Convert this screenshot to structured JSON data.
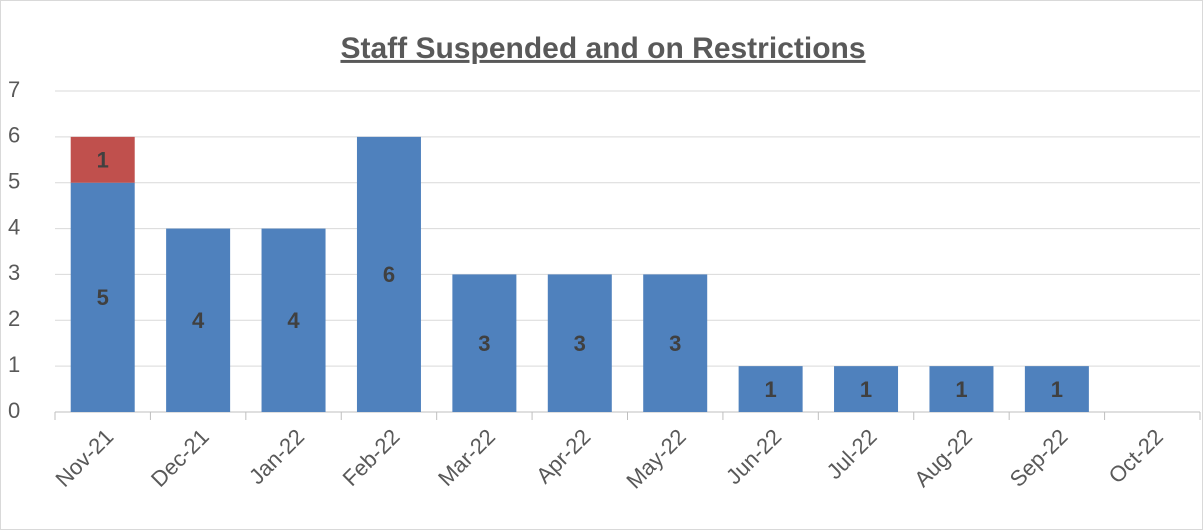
{
  "chart_data": {
    "type": "bar",
    "stacked": true,
    "title": "Staff Suspended and on Restrictions",
    "categories": [
      "Nov-21",
      "Dec-21",
      "Jan-22",
      "Feb-22",
      "Mar-22",
      "Apr-22",
      "May-22",
      "Jun-22",
      "Jul-22",
      "Aug-22",
      "Sep-22",
      "Oct-22"
    ],
    "series": [
      {
        "color": "#4f81bd",
        "values": [
          5,
          4,
          4,
          6,
          3,
          3,
          3,
          1,
          1,
          1,
          1,
          null
        ]
      },
      {
        "color": "#c0504d",
        "values": [
          1,
          null,
          null,
          null,
          null,
          null,
          null,
          null,
          null,
          null,
          null,
          null
        ]
      }
    ],
    "ylim": [
      0,
      7
    ],
    "yticks": [
      0,
      1,
      2,
      3,
      4,
      5,
      6,
      7
    ],
    "grid": true,
    "data_labels": true
  }
}
